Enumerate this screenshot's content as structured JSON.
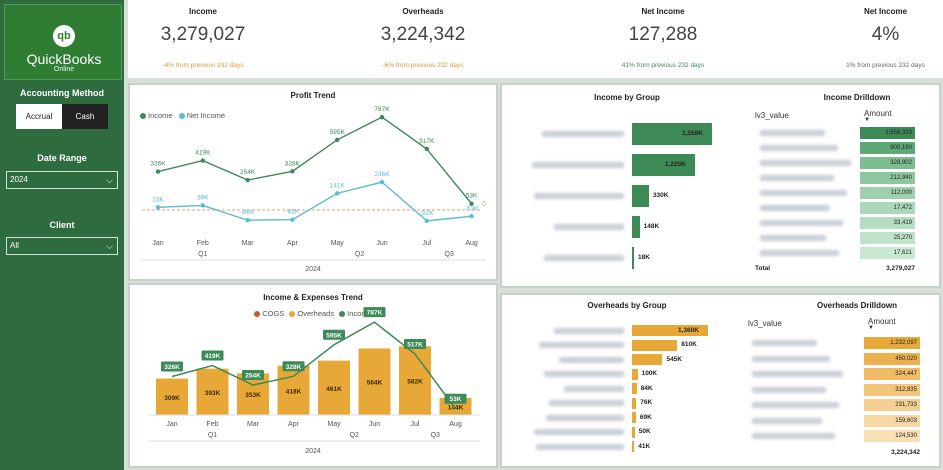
{
  "sidebar": {
    "logo": {
      "name": "QuickBooks",
      "sub": "Online",
      "glyph": "qb"
    },
    "accounting_method_label": "Accounting Method",
    "accrual_label": "Accrual",
    "cash_label": "Cash",
    "date_range_label": "Date Range",
    "date_range_value": "2024",
    "client_label": "Client",
    "client_value": "All"
  },
  "kpis": [
    {
      "title": "Income",
      "value": "3,279,027",
      "sub": "-4% from previous 232 days"
    },
    {
      "title": "Overheads",
      "value": "3,224,342",
      "sub": "-6% from previous 232 days"
    },
    {
      "title": "Net Income",
      "value": "127,288",
      "sub": "41% from previous 232 days"
    },
    {
      "title": "Net Income",
      "value": "4%",
      "sub": "1% from previous 232 days"
    }
  ],
  "profit_trend": {
    "title": "Profit Trend",
    "legend": [
      "Income",
      "Net Income"
    ],
    "year_label": "2024",
    "months": [
      "Jan",
      "Feb",
      "Mar",
      "Apr",
      "May",
      "Jun",
      "Jul",
      "Aug"
    ],
    "quarters": [
      "Q1",
      "Q2",
      "Q3"
    ],
    "ref_label": "0"
  },
  "income_expenses": {
    "title": "Income & Expenses Trend",
    "legend": [
      "COGS",
      "Overheads",
      "Income"
    ],
    "year_label": "2024",
    "months": [
      "Jan",
      "Feb",
      "Mar",
      "Apr",
      "May",
      "Jun",
      "Jul",
      "Aug"
    ],
    "quarters": [
      "Q1",
      "Q2",
      "Q3"
    ]
  },
  "income_group": {
    "title": "Income by Group",
    "labels": [
      "1,558K",
      "1,225K",
      "330K",
      "148K",
      "18K"
    ]
  },
  "income_drilldown": {
    "title": "Income Drilldown",
    "col_label": "lv3_value",
    "col_amount": "Amount",
    "amounts": [
      "1,558,333",
      "900,190",
      "328,902",
      "212,940",
      "112,000",
      "17,472",
      "33,419",
      "25,270",
      "17,621"
    ],
    "total_label": "Total",
    "total_value": "3,279,027"
  },
  "overheads_group": {
    "title": "Overheads by Group",
    "labels": [
      "1,360K",
      "810K",
      "545K",
      "100K",
      "84K",
      "76K",
      "69K",
      "50K",
      "41K"
    ]
  },
  "overheads_drilldown": {
    "title": "Overheads Drilldown",
    "col_label": "lv3_value",
    "col_amount": "Amount",
    "amounts": [
      "1,232,097",
      "450,020",
      "324,447",
      "312,835",
      "231,733",
      "159,603",
      "124,530"
    ],
    "total_value": "3,224,342"
  },
  "chart_data": [
    {
      "type": "line",
      "title": "Profit Trend",
      "x": [
        "Jan",
        "Feb",
        "Mar",
        "Apr",
        "May",
        "Jun",
        "Jul",
        "Aug"
      ],
      "series": [
        {
          "name": "Income",
          "values": [
            326,
            419,
            254,
            328,
            595,
            787,
            517,
            53
          ],
          "labels": [
            "326K",
            "419K",
            "254K",
            "328K",
            "595K",
            "787K",
            "517K",
            "53K"
          ],
          "color": "#3d8a56"
        },
        {
          "name": "Net Income",
          "values": [
            23,
            39,
            -86,
            -82,
            141,
            236,
            -92,
            -53
          ],
          "labels": [
            "23K",
            "39K",
            "-86K",
            "-82K",
            "141K",
            "236K",
            "-92K",
            "-53K"
          ],
          "color": "#5bbad5"
        }
      ]
    },
    {
      "type": "bar",
      "title": "Income & Expenses Trend",
      "categories": [
        "Jan",
        "Feb",
        "Mar",
        "Apr",
        "May",
        "Jun",
        "Jul",
        "Aug"
      ],
      "series": [
        {
          "name": "Overheads",
          "values": [
            309,
            393,
            353,
            418,
            461,
            564,
            582,
            144
          ],
          "labels": [
            "309K",
            "393K",
            "353K",
            "418K",
            "461K",
            "564K",
            "582K",
            "144K"
          ],
          "color": "#e8a838"
        },
        {
          "name": "Income",
          "values": [
            326,
            419,
            254,
            328,
            595,
            787,
            517,
            53
          ],
          "labels": [
            "326K",
            "419K",
            "254K",
            "328K",
            "595K",
            "787K",
            "517K",
            "53K"
          ],
          "color": "#3d8a56"
        }
      ]
    },
    {
      "type": "bar",
      "title": "Income by Group",
      "values": [
        1558,
        1225,
        330,
        148,
        18
      ],
      "color": "#3d8a56"
    },
    {
      "type": "bar",
      "title": "Overheads by Group",
      "values": [
        1360,
        810,
        545,
        100,
        84,
        76,
        69,
        50,
        41
      ],
      "color": "#e8a838"
    }
  ]
}
